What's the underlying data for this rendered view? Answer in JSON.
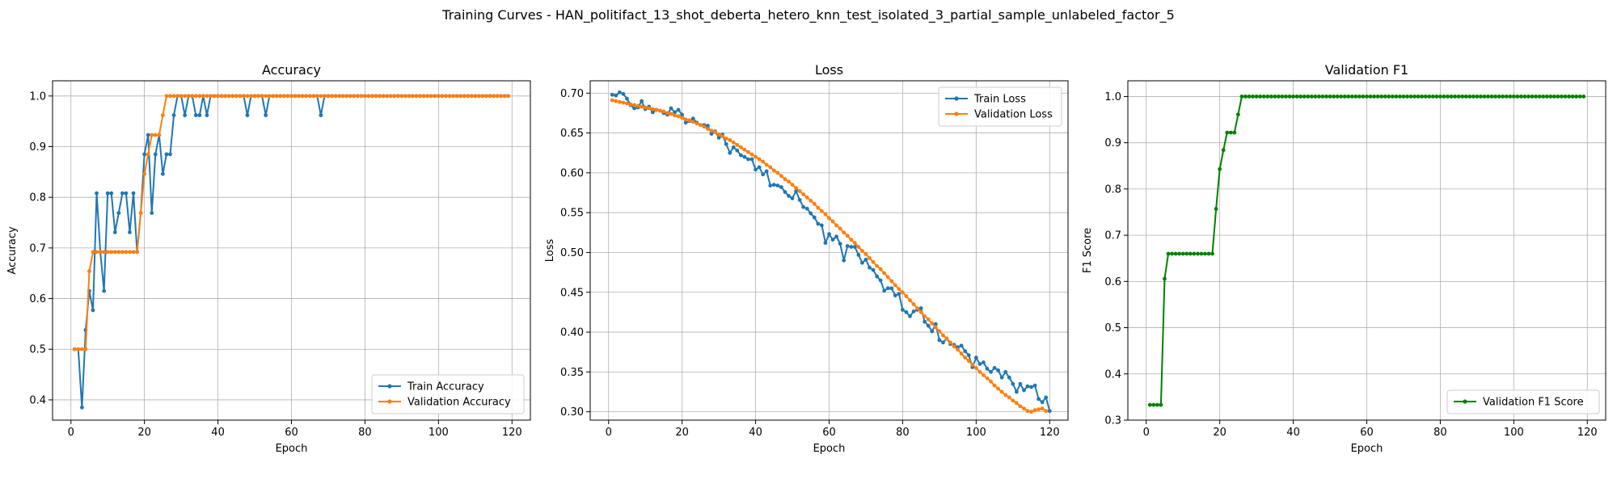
{
  "figure": {
    "suptitle": "Training Curves - HAN_politifact_13_shot_deberta_hetero_knn_test_isolated_3_partial_sample_unlabeled_factor_5"
  },
  "colors": {
    "blue": "#1f77b4",
    "orange": "#ff7f0e",
    "green": "#008000",
    "grid": "#b0b0b0"
  },
  "chart_data": [
    {
      "type": "line",
      "title": "Accuracy",
      "xlabel": "Epoch",
      "ylabel": "Accuracy",
      "xlim": [
        -5,
        125
      ],
      "ylim": [
        0.36,
        1.03
      ],
      "xticks": [
        0,
        20,
        40,
        60,
        80,
        100,
        120
      ],
      "yticks": [
        0.4,
        0.5,
        0.6,
        0.7,
        0.8,
        0.9,
        1.0
      ],
      "ytick_labels": [
        "0.4",
        "0.5",
        "0.6",
        "0.7",
        "0.8",
        "0.9",
        "1.0"
      ],
      "grid": true,
      "legend": "lower-right",
      "series": [
        {
          "name": "Train Accuracy",
          "color": "#1f77b4",
          "x_start": 1,
          "values": [
            0.5,
            0.5,
            0.385,
            0.538,
            0.615,
            0.577,
            0.808,
            0.692,
            0.615,
            0.808,
            0.808,
            0.731,
            0.769,
            0.808,
            0.808,
            0.731,
            0.808,
            0.692,
            0.769,
            0.885,
            0.923,
            0.769,
            0.885,
            0.923,
            0.846,
            0.885,
            0.885,
            0.962,
            1.0,
            1.0,
            0.962,
            1.0,
            1.0,
            0.962,
            0.962,
            1.0,
            0.962,
            1.0,
            1.0,
            1.0,
            1.0,
            1.0,
            1.0,
            1.0,
            1.0,
            1.0,
            1.0,
            0.962,
            1.0,
            1.0,
            1.0,
            1.0,
            0.962,
            1.0,
            1.0,
            1.0,
            1.0,
            1.0,
            1.0,
            1.0,
            1.0,
            1.0,
            1.0,
            1.0,
            1.0,
            1.0,
            1.0,
            0.962,
            1.0,
            1.0,
            1.0,
            1.0,
            1.0,
            1.0,
            1.0,
            1.0,
            1.0,
            1.0,
            1.0,
            1.0,
            1.0,
            1.0,
            1.0,
            1.0,
            1.0,
            1.0,
            1.0,
            1.0,
            1.0,
            1.0,
            1.0,
            1.0,
            1.0,
            1.0,
            1.0,
            1.0,
            1.0,
            1.0,
            1.0,
            1.0,
            1.0,
            1.0,
            1.0,
            1.0,
            1.0,
            1.0,
            1.0,
            1.0,
            1.0,
            1.0,
            1.0,
            1.0,
            1.0,
            1.0,
            1.0,
            1.0,
            1.0,
            1.0,
            1.0
          ]
        },
        {
          "name": "Validation Accuracy",
          "color": "#ff7f0e",
          "x_start": 1,
          "values": [
            0.5,
            0.5,
            0.5,
            0.5,
            0.654,
            0.692,
            0.692,
            0.692,
            0.692,
            0.692,
            0.692,
            0.692,
            0.692,
            0.692,
            0.692,
            0.692,
            0.692,
            0.692,
            0.769,
            0.846,
            0.885,
            0.923,
            0.923,
            0.923,
            0.962,
            1.0,
            1.0,
            1.0,
            1.0,
            1.0,
            1.0,
            1.0,
            1.0,
            1.0,
            1.0,
            1.0,
            1.0,
            1.0,
            1.0,
            1.0,
            1.0,
            1.0,
            1.0,
            1.0,
            1.0,
            1.0,
            1.0,
            1.0,
            1.0,
            1.0,
            1.0,
            1.0,
            1.0,
            1.0,
            1.0,
            1.0,
            1.0,
            1.0,
            1.0,
            1.0,
            1.0,
            1.0,
            1.0,
            1.0,
            1.0,
            1.0,
            1.0,
            1.0,
            1.0,
            1.0,
            1.0,
            1.0,
            1.0,
            1.0,
            1.0,
            1.0,
            1.0,
            1.0,
            1.0,
            1.0,
            1.0,
            1.0,
            1.0,
            1.0,
            1.0,
            1.0,
            1.0,
            1.0,
            1.0,
            1.0,
            1.0,
            1.0,
            1.0,
            1.0,
            1.0,
            1.0,
            1.0,
            1.0,
            1.0,
            1.0,
            1.0,
            1.0,
            1.0,
            1.0,
            1.0,
            1.0,
            1.0,
            1.0,
            1.0,
            1.0,
            1.0,
            1.0,
            1.0,
            1.0,
            1.0,
            1.0,
            1.0,
            1.0,
            1.0
          ]
        }
      ]
    },
    {
      "type": "line",
      "title": "Loss",
      "xlabel": "Epoch",
      "ylabel": "Loss",
      "xlim": [
        -5,
        125
      ],
      "ylim": [
        0.2895,
        0.7155
      ],
      "xticks": [
        0,
        20,
        40,
        60,
        80,
        100,
        120
      ],
      "yticks": [
        0.3,
        0.35,
        0.4,
        0.45,
        0.5,
        0.55,
        0.6,
        0.65,
        0.7
      ],
      "ytick_labels": [
        "0.30",
        "0.35",
        "0.40",
        "0.45",
        "0.50",
        "0.55",
        "0.60",
        "0.65",
        "0.70"
      ],
      "grid": true,
      "legend": "top-right",
      "series": [
        {
          "name": "Train Loss",
          "color": "#1f77b4",
          "x_start": 1,
          "values": [
            0.698,
            0.697,
            0.701,
            0.699,
            0.693,
            0.685,
            0.681,
            0.682,
            0.69,
            0.68,
            0.683,
            0.676,
            0.679,
            0.678,
            0.675,
            0.673,
            0.681,
            0.676,
            0.679,
            0.673,
            0.663,
            0.665,
            0.668,
            0.663,
            0.66,
            0.66,
            0.659,
            0.649,
            0.652,
            0.644,
            0.648,
            0.636,
            0.625,
            0.632,
            0.628,
            0.622,
            0.62,
            0.617,
            0.617,
            0.604,
            0.607,
            0.598,
            0.602,
            0.584,
            0.585,
            0.584,
            0.582,
            0.576,
            0.571,
            0.568,
            0.577,
            0.566,
            0.557,
            0.555,
            0.549,
            0.544,
            0.536,
            0.534,
            0.512,
            0.523,
            0.516,
            0.52,
            0.511,
            0.49,
            0.508,
            0.507,
            0.507,
            0.497,
            0.487,
            0.491,
            0.481,
            0.478,
            0.47,
            0.465,
            0.452,
            0.455,
            0.455,
            0.446,
            0.448,
            0.428,
            0.425,
            0.42,
            0.426,
            0.428,
            0.43,
            0.413,
            0.408,
            0.401,
            0.41,
            0.39,
            0.387,
            0.392,
            0.385,
            0.384,
            0.381,
            0.383,
            0.376,
            0.371,
            0.356,
            0.368,
            0.36,
            0.362,
            0.354,
            0.35,
            0.355,
            0.352,
            0.343,
            0.35,
            0.343,
            0.335,
            0.325,
            0.335,
            0.327,
            0.332,
            0.331,
            0.333,
            0.316,
            0.312,
            0.318,
            0.301
          ]
        },
        {
          "name": "Validation Loss",
          "color": "#ff7f0e",
          "x_start": 1,
          "values": [
            0.691,
            0.69,
            0.689,
            0.688,
            0.687,
            0.686,
            0.685,
            0.684,
            0.683,
            0.682,
            0.681,
            0.68,
            0.679,
            0.678,
            0.677,
            0.675,
            0.674,
            0.672,
            0.671,
            0.669,
            0.667,
            0.666,
            0.664,
            0.662,
            0.66,
            0.658,
            0.655,
            0.653,
            0.651,
            0.648,
            0.646,
            0.643,
            0.641,
            0.638,
            0.635,
            0.632,
            0.629,
            0.626,
            0.623,
            0.62,
            0.617,
            0.614,
            0.61,
            0.607,
            0.603,
            0.6,
            0.596,
            0.592,
            0.589,
            0.585,
            0.581,
            0.577,
            0.573,
            0.569,
            0.565,
            0.561,
            0.556,
            0.552,
            0.548,
            0.543,
            0.539,
            0.534,
            0.53,
            0.525,
            0.521,
            0.516,
            0.512,
            0.507,
            0.502,
            0.498,
            0.493,
            0.488,
            0.483,
            0.479,
            0.474,
            0.469,
            0.464,
            0.459,
            0.454,
            0.45,
            0.445,
            0.44,
            0.435,
            0.43,
            0.425,
            0.42,
            0.416,
            0.411,
            0.406,
            0.401,
            0.396,
            0.392,
            0.387,
            0.382,
            0.378,
            0.373,
            0.368,
            0.364,
            0.359,
            0.355,
            0.35,
            0.346,
            0.342,
            0.338,
            0.333,
            0.329,
            0.325,
            0.321,
            0.318,
            0.314,
            0.311,
            0.307,
            0.304,
            0.301,
            0.3,
            0.302,
            0.303,
            0.304,
            0.301
          ]
        }
      ]
    },
    {
      "type": "line",
      "title": "Validation F1",
      "xlabel": "Epoch",
      "ylabel": "F1 Score",
      "xlim": [
        -5,
        125
      ],
      "ylim": [
        0.3,
        1.034
      ],
      "xticks": [
        0,
        20,
        40,
        60,
        80,
        100,
        120
      ],
      "yticks": [
        0.3,
        0.4,
        0.5,
        0.6,
        0.7,
        0.8,
        0.9,
        1.0
      ],
      "ytick_labels": [
        "0.3",
        "0.4",
        "0.5",
        "0.6",
        "0.7",
        "0.8",
        "0.9",
        "1.0"
      ],
      "grid": true,
      "legend": "lower-right",
      "series": [
        {
          "name": "Validation F1 Score",
          "color": "#008000",
          "x_start": 1,
          "values": [
            0.333,
            0.333,
            0.333,
            0.333,
            0.606,
            0.66,
            0.66,
            0.66,
            0.66,
            0.66,
            0.66,
            0.66,
            0.66,
            0.66,
            0.66,
            0.66,
            0.66,
            0.66,
            0.757,
            0.843,
            0.884,
            0.922,
            0.922,
            0.922,
            0.961,
            1.0,
            1.0,
            1.0,
            1.0,
            1.0,
            1.0,
            1.0,
            1.0,
            1.0,
            1.0,
            1.0,
            1.0,
            1.0,
            1.0,
            1.0,
            1.0,
            1.0,
            1.0,
            1.0,
            1.0,
            1.0,
            1.0,
            1.0,
            1.0,
            1.0,
            1.0,
            1.0,
            1.0,
            1.0,
            1.0,
            1.0,
            1.0,
            1.0,
            1.0,
            1.0,
            1.0,
            1.0,
            1.0,
            1.0,
            1.0,
            1.0,
            1.0,
            1.0,
            1.0,
            1.0,
            1.0,
            1.0,
            1.0,
            1.0,
            1.0,
            1.0,
            1.0,
            1.0,
            1.0,
            1.0,
            1.0,
            1.0,
            1.0,
            1.0,
            1.0,
            1.0,
            1.0,
            1.0,
            1.0,
            1.0,
            1.0,
            1.0,
            1.0,
            1.0,
            1.0,
            1.0,
            1.0,
            1.0,
            1.0,
            1.0,
            1.0,
            1.0,
            1.0,
            1.0,
            1.0,
            1.0,
            1.0,
            1.0,
            1.0,
            1.0,
            1.0,
            1.0,
            1.0,
            1.0,
            1.0,
            1.0,
            1.0,
            1.0,
            1.0
          ]
        }
      ]
    }
  ]
}
